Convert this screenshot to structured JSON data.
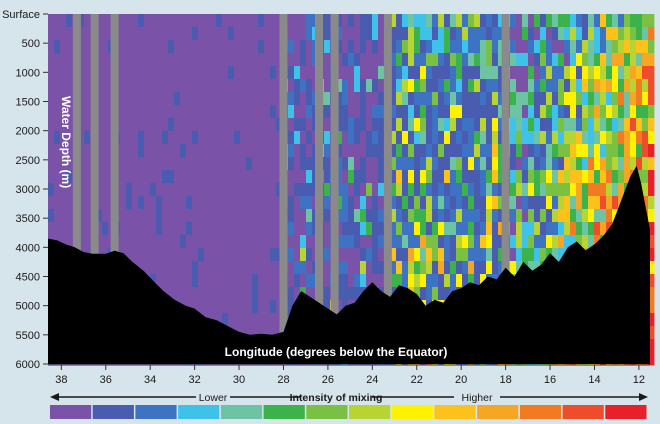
{
  "chart_data": {
    "type": "heatmap",
    "title": "",
    "xlabel": "Longitude (degrees below the Equator)",
    "ylabel": "Water Depth (m)",
    "x_ticks": [
      38,
      36,
      34,
      32,
      30,
      28,
      26,
      24,
      22,
      20,
      18,
      16,
      14,
      12
    ],
    "x_range": [
      38.6,
      11.5
    ],
    "y_ticks": [
      {
        "value": 0,
        "label": "Surface"
      },
      {
        "value": 500,
        "label": "500"
      },
      {
        "value": 1000,
        "label": "1000"
      },
      {
        "value": 1500,
        "label": "1500"
      },
      {
        "value": 2000,
        "label": "2000"
      },
      {
        "value": 2500,
        "label": "2500"
      },
      {
        "value": 3000,
        "label": "3000"
      },
      {
        "value": 3500,
        "label": "3500"
      },
      {
        "value": 4000,
        "label": "4000"
      },
      {
        "value": 4500,
        "label": "4500"
      },
      {
        "value": 5000,
        "label": "5000"
      },
      {
        "value": 5500,
        "label": "5500"
      },
      {
        "value": 6000,
        "label": "6000"
      }
    ],
    "y_range": [
      0,
      6000
    ],
    "no_data_stations": [
      37.3,
      36.5,
      35.6,
      28.0,
      26.4,
      25.7,
      23.3,
      18.0
    ],
    "seafloor": [
      [
        38.6,
        3850
      ],
      [
        38.2,
        3880
      ],
      [
        37.8,
        3950
      ],
      [
        37.4,
        4000
      ],
      [
        37.0,
        4080
      ],
      [
        36.6,
        4110
      ],
      [
        36.0,
        4110
      ],
      [
        35.6,
        4060
      ],
      [
        35.2,
        4100
      ],
      [
        34.8,
        4250
      ],
      [
        34.3,
        4400
      ],
      [
        33.8,
        4600
      ],
      [
        33.4,
        4750
      ],
      [
        32.9,
        4900
      ],
      [
        32.4,
        5000
      ],
      [
        32.0,
        5050
      ],
      [
        31.5,
        5200
      ],
      [
        31.0,
        5250
      ],
      [
        30.5,
        5350
      ],
      [
        30.0,
        5450
      ],
      [
        29.5,
        5500
      ],
      [
        29.0,
        5480
      ],
      [
        28.5,
        5500
      ],
      [
        28.0,
        5450
      ],
      [
        27.6,
        5000
      ],
      [
        27.2,
        4750
      ],
      [
        26.8,
        4850
      ],
      [
        26.4,
        4950
      ],
      [
        26.0,
        5050
      ],
      [
        25.6,
        5150
      ],
      [
        25.2,
        5000
      ],
      [
        24.8,
        4950
      ],
      [
        24.4,
        4750
      ],
      [
        24.0,
        4600
      ],
      [
        23.6,
        4750
      ],
      [
        23.2,
        4850
      ],
      [
        22.8,
        4650
      ],
      [
        22.4,
        4700
      ],
      [
        22.0,
        4800
      ],
      [
        21.6,
        5000
      ],
      [
        21.2,
        4900
      ],
      [
        20.8,
        4950
      ],
      [
        20.4,
        4750
      ],
      [
        20.0,
        4700
      ],
      [
        19.6,
        4600
      ],
      [
        19.2,
        4650
      ],
      [
        18.8,
        4500
      ],
      [
        18.4,
        4550
      ],
      [
        18.0,
        4350
      ],
      [
        17.6,
        4500
      ],
      [
        17.2,
        4250
      ],
      [
        16.8,
        4400
      ],
      [
        16.4,
        4300
      ],
      [
        16.0,
        4100
      ],
      [
        15.6,
        4250
      ],
      [
        15.2,
        4000
      ],
      [
        14.8,
        3900
      ],
      [
        14.4,
        4050
      ],
      [
        14.0,
        3950
      ],
      [
        13.6,
        3800
      ],
      [
        13.2,
        3600
      ],
      [
        12.8,
        3200
      ],
      [
        12.4,
        2800
      ],
      [
        12.1,
        2600
      ],
      [
        11.9,
        2900
      ],
      [
        11.5,
        3700
      ]
    ],
    "legend": {
      "title": "Intensity of mixing",
      "low_label": "Lower",
      "high_label": "Higher",
      "colors": [
        "#7a52a8",
        "#4a5cb0",
        "#3e73c4",
        "#3fc2e9",
        "#6cc4a4",
        "#3cb24a",
        "#7ac143",
        "#b8d433",
        "#fff200",
        "#fcc21b",
        "#f5a623",
        "#f27b21",
        "#ee4d2b",
        "#e8202a"
      ]
    },
    "colors": {
      "no_data": "#8a8a8a",
      "seafloor": "#000000",
      "background": "#d6e4ec"
    }
  }
}
